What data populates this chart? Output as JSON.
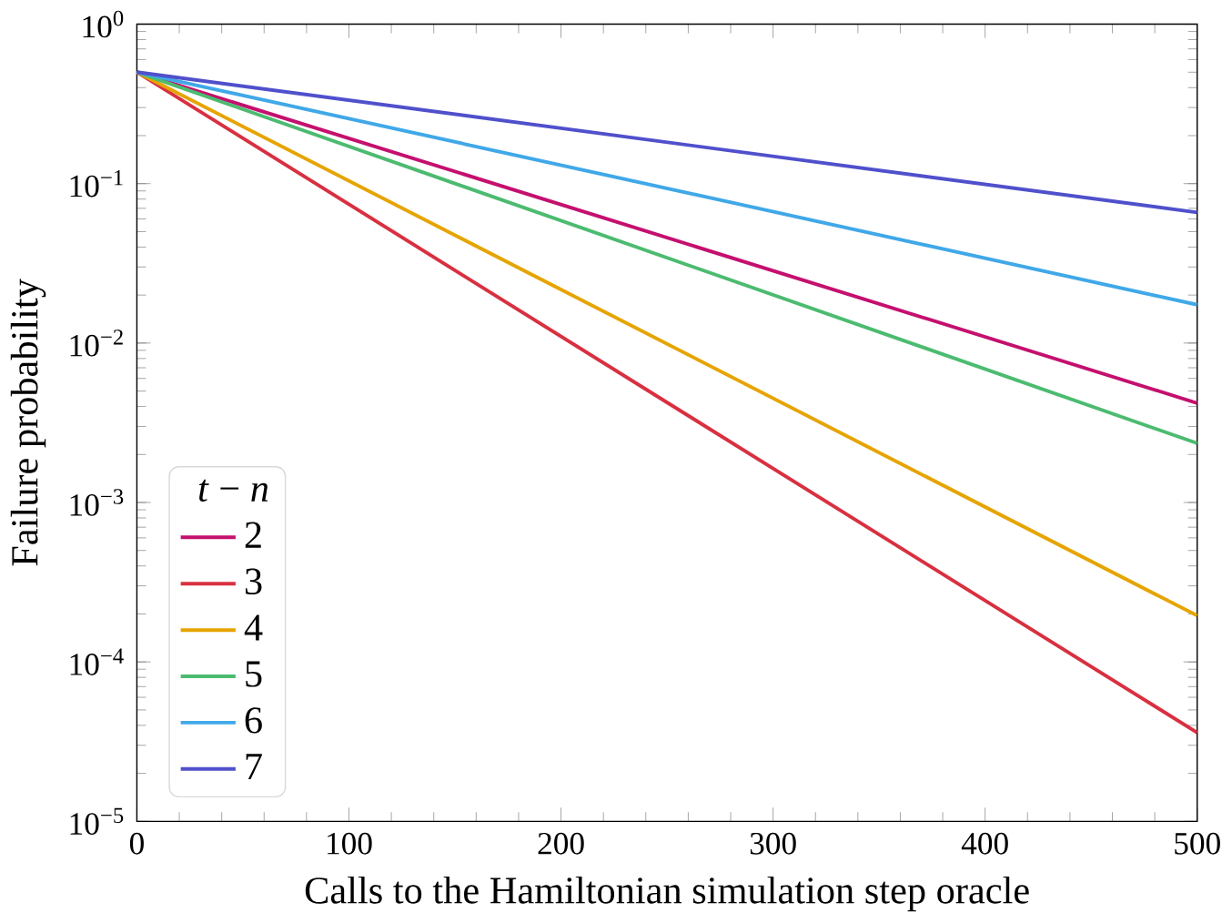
{
  "chart_data": {
    "type": "line",
    "xlabel": "Calls to the Hamiltonian simulation step oracle",
    "ylabel": "Failure probability",
    "legend_title": "*t* − *n*",
    "x": [
      0,
      500
    ],
    "series": [
      {
        "name": "2",
        "color": "#c4106e",
        "values": [
          0.5,
          0.0042
        ]
      },
      {
        "name": "3",
        "color": "#d83040",
        "values": [
          0.5,
          3.6e-05
        ]
      },
      {
        "name": "4",
        "color": "#e6a400",
        "values": [
          0.5,
          0.000195
        ]
      },
      {
        "name": "5",
        "color": "#4cbb70",
        "values": [
          0.5,
          0.00235
        ]
      },
      {
        "name": "6",
        "color": "#40a8e8",
        "values": [
          0.5,
          0.0174
        ]
      },
      {
        "name": "7",
        "color": "#5050cc",
        "values": [
          0.5,
          0.066
        ]
      }
    ],
    "log": "y",
    "xlim": [
      0,
      500
    ],
    "ylim": [
      1e-05,
      1
    ],
    "xticks": [
      0,
      100,
      200,
      300,
      400,
      500
    ],
    "yticks": [
      {
        "value": 1e-05,
        "label": "10$^{−5}$"
      },
      {
        "value": 0.0001,
        "label": "10$^{−4}$"
      },
      {
        "value": 0.001,
        "label": "10$^{−3}$"
      },
      {
        "value": 0.01,
        "label": "10$^{−2}$"
      },
      {
        "value": 0.1,
        "label": "10$^{−1}$"
      },
      {
        "value": 1,
        "label": "10$^{0}$"
      }
    ],
    "legend": "bottom left",
    "grid": false,
    "marker": "none",
    "line_style": "solid"
  }
}
